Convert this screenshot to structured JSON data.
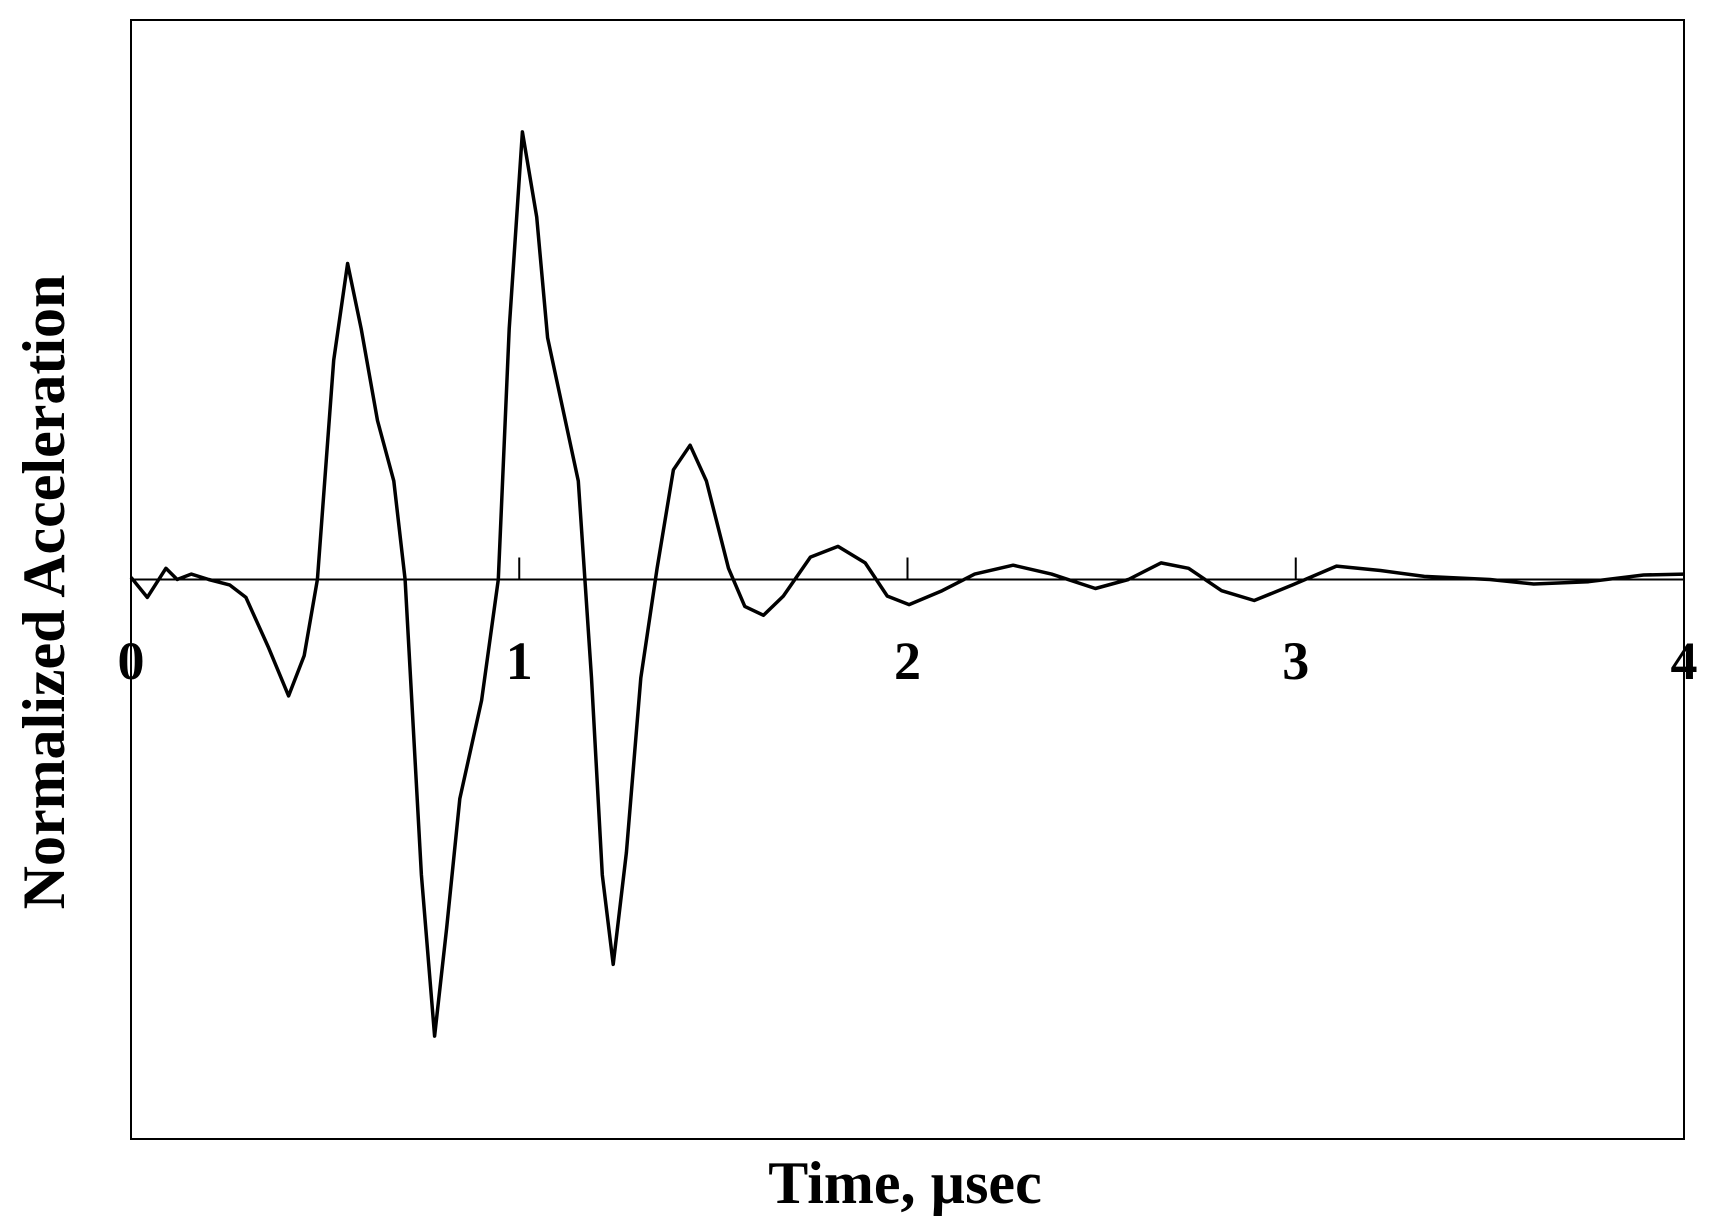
{
  "chart_data": {
    "type": "line",
    "xlabel": "Time, µsec",
    "ylabel": "Normalized Acceleration",
    "x": [
      0,
      0.042,
      0.09,
      0.119,
      0.155,
      0.2,
      0.254,
      0.296,
      0.353,
      0.406,
      0.446,
      0.48,
      0.522,
      0.558,
      0.593,
      0.635,
      0.677,
      0.706,
      0.748,
      0.782,
      0.813,
      0.847,
      0.903,
      0.946,
      0.974,
      1.008,
      1.045,
      1.073,
      1.115,
      1.152,
      1.186,
      1.214,
      1.242,
      1.276,
      1.313,
      1.355,
      1.397,
      1.44,
      1.482,
      1.539,
      1.581,
      1.629,
      1.68,
      1.75,
      1.821,
      1.891,
      1.948,
      2.004,
      2.089,
      2.173,
      2.272,
      2.371,
      2.484,
      2.569,
      2.653,
      2.724,
      2.809,
      2.893,
      2.992,
      3.105,
      3.218,
      3.331,
      3.5,
      3.613,
      3.754,
      3.896,
      4.0
    ],
    "series": [
      {
        "color": "#000000",
        "values": [
          0.005,
          -0.04,
          0.025,
          0,
          0.012,
          0,
          -0.012,
          -0.04,
          -0.15,
          -0.26,
          -0.17,
          0,
          0.49,
          0.706,
          0.56,
          0.355,
          0.22,
          0,
          -0.66,
          -1.02,
          -0.78,
          -0.49,
          -0.27,
          0,
          0.56,
          1.0,
          0.81,
          0.54,
          0.37,
          0.22,
          -0.22,
          -0.66,
          -0.86,
          -0.61,
          -0.22,
          0.025,
          0.245,
          0.3,
          0.22,
          0.025,
          -0.06,
          -0.08,
          -0.037,
          0.05,
          0.074,
          0.037,
          -0.037,
          -0.056,
          -0.025,
          0.012,
          0.032,
          0.012,
          -0.02,
          0,
          0.037,
          0.025,
          -0.025,
          -0.047,
          -0.012,
          0.03,
          0.02,
          0.007,
          0,
          -0.01,
          -0.005,
          0.01,
          0.012
        ]
      }
    ],
    "xlim": [
      0,
      4
    ],
    "xticks": [
      0,
      1,
      2,
      3,
      4
    ],
    "ylim": [
      -1.25,
      1.25
    ]
  }
}
